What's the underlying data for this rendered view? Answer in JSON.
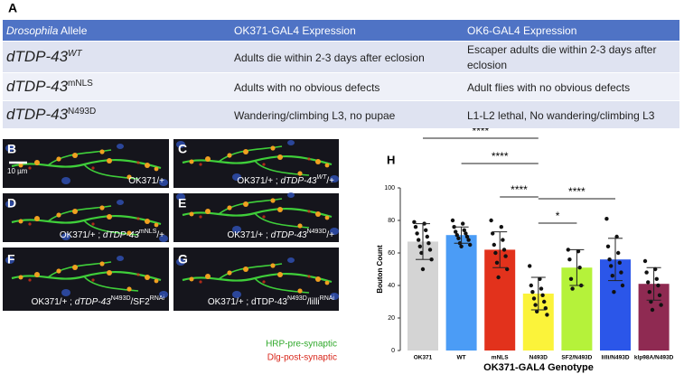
{
  "table": {
    "label": "A",
    "header": [
      [
        "Drosophila",
        " Allele"
      ],
      [
        "OK371-GAL4  Expression"
      ],
      [
        "OK6-GAL4 Expression"
      ]
    ],
    "rows": [
      [
        [
          "dTDP-43",
          "WT"
        ],
        [
          "Adults die within 2-3 days after eclosion"
        ],
        [
          "Escaper adults die within 2-3 days after eclosion"
        ]
      ],
      [
        [
          "dTDP-43",
          "mNLS"
        ],
        [
          "Adults with no obvious defects"
        ],
        [
          "Adult flies with no obvious defects"
        ]
      ],
      [
        [
          "dTDP-43",
          "N493D"
        ],
        [
          "Wandering/climbing L3, no pupae"
        ],
        [
          "L1-L2 lethal, No wandering/climbing L3"
        ]
      ]
    ]
  },
  "images": [
    {
      "label": "B",
      "caption": [
        "OK371/+"
      ],
      "scale": "10 µm"
    },
    {
      "label": "C",
      "caption": [
        "OK371/+ ; ",
        "dTDP-43",
        "WT",
        "/+"
      ]
    },
    {
      "label": "D",
      "caption": [
        "OK371/+ ; ",
        "dTDP-43",
        "mNLS",
        "/+"
      ]
    },
    {
      "label": "E",
      "caption": [
        "OK371/+ ; ",
        "dTDP-43",
        "N493D",
        "/+"
      ]
    },
    {
      "label": "F",
      "caption": [
        "OK371/+ ; ",
        "dTDP-43",
        "N493D",
        "/SF2",
        "RNAi"
      ]
    },
    {
      "label": "G",
      "caption": [
        "OK371/+ ; dTDP-43",
        "N493D",
        "/lilli",
        "RNAi"
      ]
    }
  ],
  "stain_legend": [
    "HRP-pre-synaptic",
    "Dlg-post-synaptic"
  ],
  "chart_data": {
    "type": "bar",
    "label": "H",
    "y_label": "Bouton Count",
    "x_label": "OK371-GAL4 Genotype",
    "categories": [
      "OK371",
      "WT",
      "mNLS",
      "N493D",
      "SF2/N493D",
      "lilli/N493D",
      "klp98A/N493D"
    ],
    "values": [
      67,
      71,
      62,
      35,
      51,
      56,
      41
    ],
    "errors": [
      11,
      5,
      11,
      10,
      11,
      13,
      10
    ],
    "colors": [
      "#d4d4d4",
      "#4b9cf6",
      "#e2321c",
      "#fbf33a",
      "#b5f23a",
      "#2b56e9",
      "#8f2a52"
    ],
    "points": [
      [
        79,
        78,
        76,
        74,
        72,
        70,
        68,
        66,
        64,
        62,
        60,
        56,
        50
      ],
      [
        80,
        78,
        76,
        74,
        73,
        72,
        71,
        70,
        69,
        68,
        66,
        65,
        64
      ],
      [
        80,
        76,
        72,
        68,
        65,
        62,
        60,
        58,
        54,
        50,
        45
      ],
      [
        52,
        44,
        40,
        38,
        36,
        34,
        32,
        30,
        28,
        26,
        24,
        22
      ],
      [
        62,
        61,
        56,
        51,
        44,
        40,
        38
      ],
      [
        81,
        70,
        64,
        60,
        56,
        54,
        52,
        48,
        46,
        40,
        36
      ],
      [
        55,
        50,
        48,
        44,
        42,
        40,
        36,
        34,
        30,
        28,
        25
      ]
    ],
    "significance": [
      {
        "label": "****",
        "groups": [
          "OK371",
          "N493D"
        ]
      },
      {
        "label": "****",
        "groups": [
          "WT",
          "N493D"
        ]
      },
      {
        "label": "****",
        "groups": [
          "mNLS",
          "N493D"
        ]
      },
      {
        "label": "****",
        "groups": [
          "N493D",
          "lilli/N493D"
        ]
      },
      {
        "label": "*",
        "groups": [
          "N493D",
          "SF2/N493D"
        ]
      }
    ],
    "ylim": [
      0,
      100
    ],
    "yticks": [
      0,
      20,
      40,
      60,
      80,
      100
    ]
  }
}
